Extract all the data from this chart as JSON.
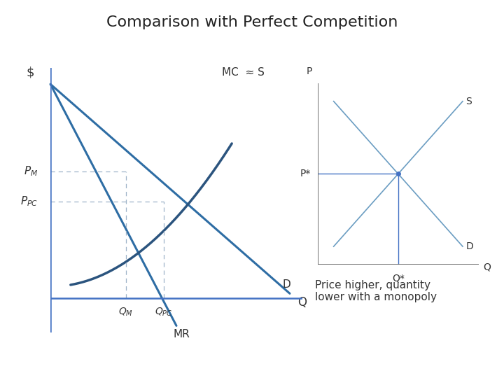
{
  "title": "Comparison with Perfect Competition",
  "title_fontsize": 16,
  "bg_color": "#ffffff",
  "left_ax": {
    "xlabel": "Q",
    "ylabel": "$",
    "xlim": [
      0,
      10
    ],
    "ylim": [
      -1.5,
      10
    ],
    "dark_blue": "#2B547E",
    "mid_blue": "#2E6DA4",
    "line_color_D": "#2E6DA4",
    "line_color_MC": "#1F3D6B",
    "label_D": "D",
    "label_MR": "MR",
    "label_MC": "MC  ≈ S",
    "QM": 3.0,
    "QPC": 4.5,
    "PM": 5.5,
    "PPC": 4.2,
    "D_x0": 0.0,
    "D_y0": 9.3,
    "D_x1": 9.5,
    "D_y1": 0.2,
    "MR_x0": 0.0,
    "MR_y0": 9.3,
    "MR_x1": 5.0,
    "MR_y1": -1.2,
    "MC_a": 0.12,
    "MC_b": 0.5,
    "MC_x0": 0.8,
    "MC_x1": 7.2
  },
  "right_ax": {
    "xlabel": "Q",
    "ylabel": "P",
    "xlim": [
      0,
      10
    ],
    "ylim": [
      0,
      10
    ],
    "label_S": "S",
    "label_D": "D",
    "label_Pstar": "P*",
    "label_Qstar": "Q*",
    "Pstar": 5.0,
    "Qstar": 5.0,
    "S_x0": 1.0,
    "S_y0": 1.0,
    "S_x1": 9.0,
    "S_y1": 9.0,
    "D_x0": 1.0,
    "D_y0": 9.0,
    "D_x1": 9.0,
    "D_y1": 1.0,
    "line_color": "#6B9DC2"
  },
  "note_text": "Price higher, quantity\nlower with a monopoly",
  "note_fontsize": 11
}
